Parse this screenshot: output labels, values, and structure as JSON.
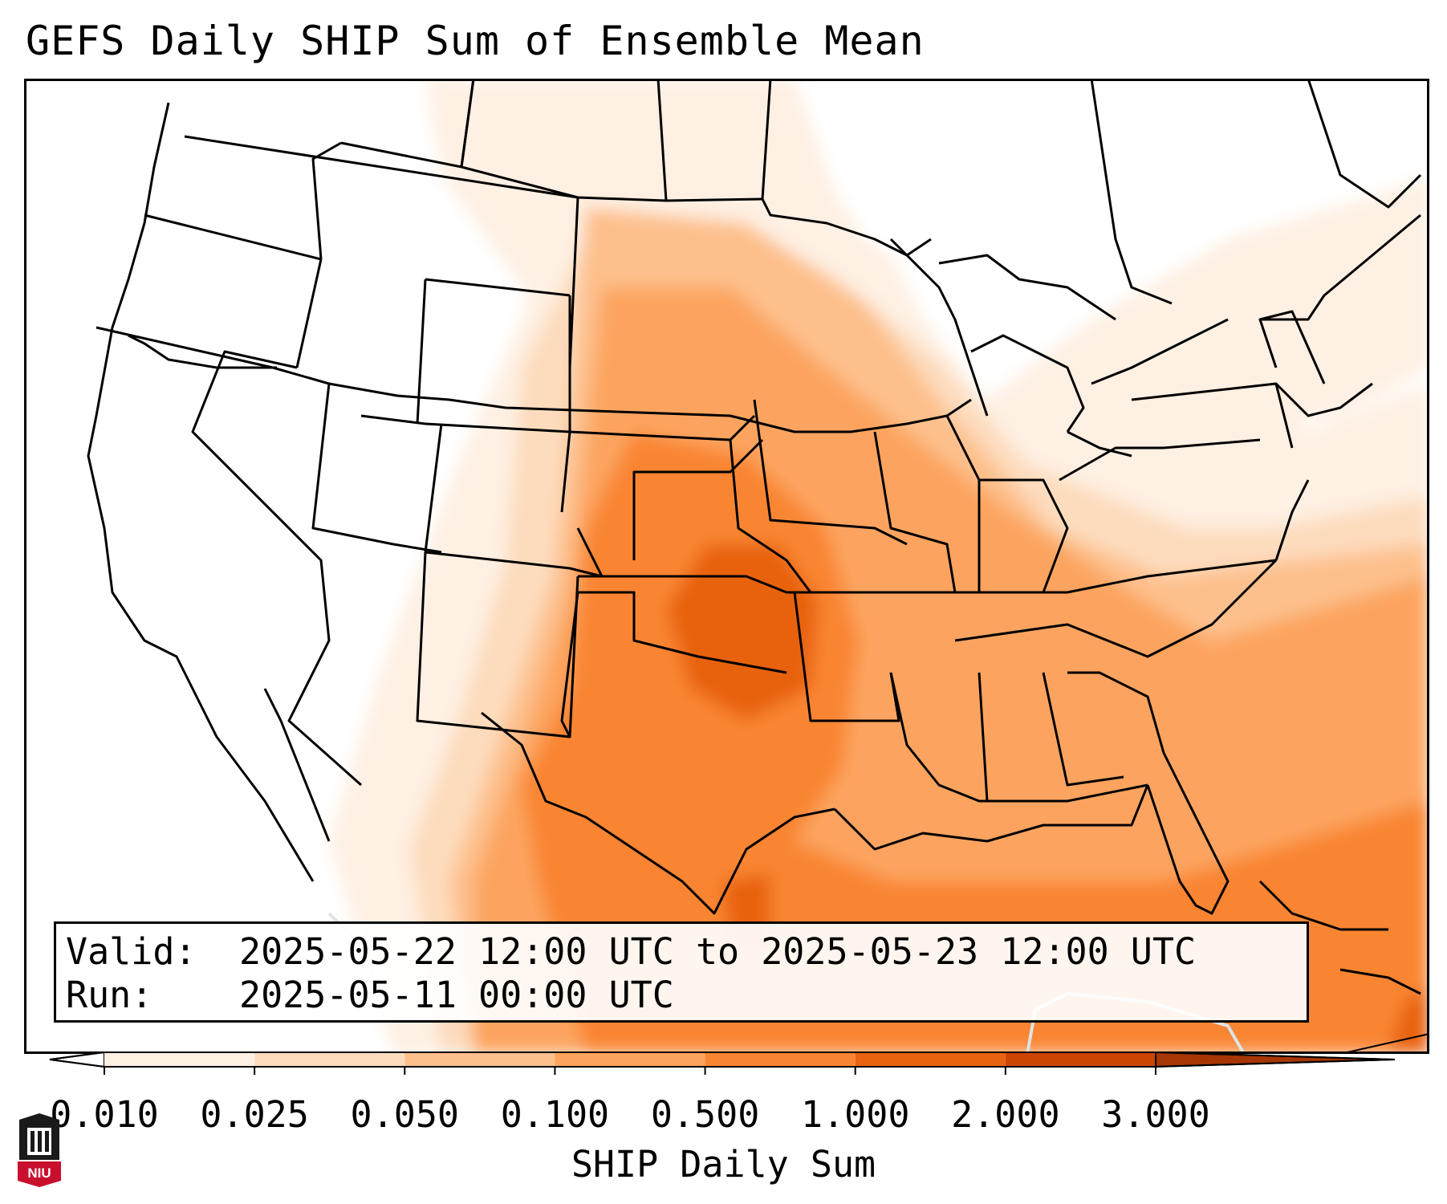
{
  "title": "GEFS Daily SHIP Sum of Ensemble Mean",
  "info": {
    "valid_label": "Valid:",
    "valid_value": "2025-05-22 12:00 UTC to 2025-05-23 12:00 UTC",
    "run_label": "Run:",
    "run_value": "2025-05-11 00:00 UTC"
  },
  "colorbar": {
    "label": "SHIP Daily Sum",
    "ticks": [
      "0.010",
      "0.025",
      "0.050",
      "0.100",
      "0.500",
      "1.000",
      "2.000",
      "3.000"
    ],
    "colors": [
      "#fef0e3",
      "#fddcbd",
      "#fdc08c",
      "#fca45e",
      "#f98532",
      "#e8620f",
      "#cc4503"
    ],
    "under_color": "#ffffff",
    "over_color": "#a63603"
  },
  "map": {
    "region": "Contiguous United States",
    "land_color": "#ffffff",
    "border_color": "#000000"
  },
  "logo": {
    "text": "NIU",
    "color": "#c8102e"
  }
}
